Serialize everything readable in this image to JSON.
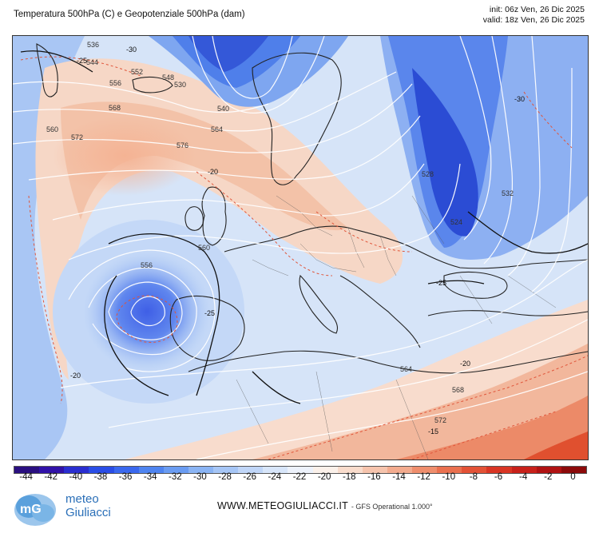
{
  "header": {
    "title": "Temperatura 500hPa (C) e Geopotenziale 500hPa (dam)",
    "init": "init: 06z Ven, 26 Dic 2025",
    "valid": "valid: 18z Ven, 26 Dic 2025"
  },
  "map": {
    "geopotential_labels": [
      "536",
      "530",
      "544",
      "548",
      "552",
      "556",
      "560",
      "564",
      "568",
      "572",
      "576",
      "540",
      "528",
      "524",
      "532",
      "556",
      "560",
      "564",
      "568",
      "572"
    ],
    "temperature_labels": [
      "-25",
      "-30",
      "-20",
      "-25",
      "-20",
      "-15",
      "-20",
      "-25",
      "-30"
    ]
  },
  "legend": {
    "ticks": [
      "-44",
      "-42",
      "-40",
      "-38",
      "-36",
      "-34",
      "-32",
      "-30",
      "-28",
      "-26",
      "-24",
      "-22",
      "-20",
      "-18",
      "-16",
      "-14",
      "-12",
      "-10",
      "-8",
      "-6",
      "-4",
      "-2",
      "0"
    ],
    "colors": [
      "#2a0f80",
      "#3112a8",
      "#2a2ed0",
      "#2a4de6",
      "#3a68ee",
      "#4e84f0",
      "#6a9cf2",
      "#8ab4f4",
      "#a6c6f6",
      "#c0d6f8",
      "#d8e6fa",
      "#edf2fb",
      "#fbf1ea",
      "#f9dccc",
      "#f6c4ad",
      "#f3ab8e",
      "#ef8e6d",
      "#ea704f",
      "#e35236",
      "#d93524",
      "#c8211a",
      "#b01212",
      "#8c0a0a"
    ]
  },
  "footer": {
    "brand_line1": "meteo",
    "brand_line2": "Giuliacci",
    "logo_text": "mG",
    "site": "WWW.METEOGIULIACCI.IT",
    "model": "- GFS Operational 1.000°"
  }
}
